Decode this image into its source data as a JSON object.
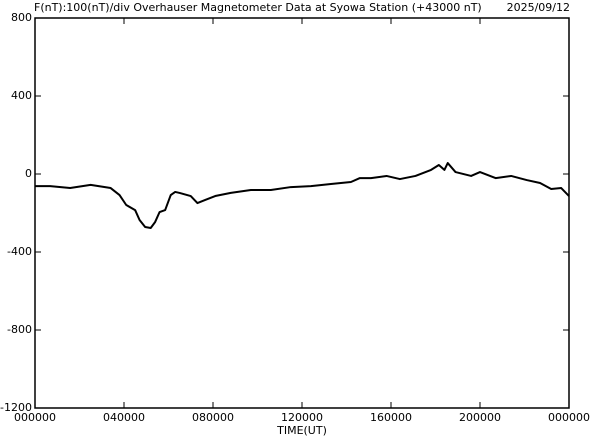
{
  "chart_data": {
    "type": "line",
    "title": "F(nT):100(nT)/div  Overhauser Magnetometer Data at Syowa Station (+43000 nT)",
    "date": "2025/09/12",
    "x_label": "TIME(UT)",
    "xlim": [
      0,
      24
    ],
    "xticks": [
      {
        "value": 0,
        "label": "000000"
      },
      {
        "value": 4,
        "label": "040000"
      },
      {
        "value": 8,
        "label": "080000"
      },
      {
        "value": 12,
        "label": "120000"
      },
      {
        "value": 16,
        "label": "160000"
      },
      {
        "value": 20,
        "label": "200000"
      },
      {
        "value": 24,
        "label": "000000"
      }
    ],
    "ylim": [
      -1200,
      800
    ],
    "yticks": [
      -1200,
      -800,
      -400,
      0,
      400,
      800
    ],
    "grid": false,
    "color": "#000000",
    "x": [
      0,
      0.68,
      1.58,
      2.5,
      3.4,
      3.8,
      4.1,
      4.5,
      4.7,
      4.95,
      5.2,
      5.4,
      5.6,
      5.85,
      6.1,
      6.3,
      6.5,
      7.0,
      7.3,
      7.65,
      8.1,
      8.8,
      9.7,
      10.6,
      11.5,
      12.4,
      13.3,
      14.2,
      14.6,
      15.1,
      15.8,
      16.4,
      17.1,
      17.8,
      18.15,
      18.4,
      18.55,
      18.9,
      19.6,
      20.0,
      20.7,
      21.4,
      22.1,
      22.7,
      23.2,
      23.65,
      24
    ],
    "values": [
      -62,
      -62,
      -72,
      -56,
      -72,
      -108,
      -159,
      -185,
      -236,
      -272,
      -277,
      -246,
      -195,
      -185,
      -108,
      -92,
      -97,
      -113,
      -149,
      -133,
      -113,
      -97,
      -82,
      -82,
      -67,
      -62,
      -51,
      -41,
      -21,
      -21,
      -10,
      -26,
      -10,
      21,
      46,
      21,
      56,
      10,
      -10,
      10,
      -21,
      -10,
      -31,
      -46,
      -77,
      -72,
      -113
    ]
  }
}
